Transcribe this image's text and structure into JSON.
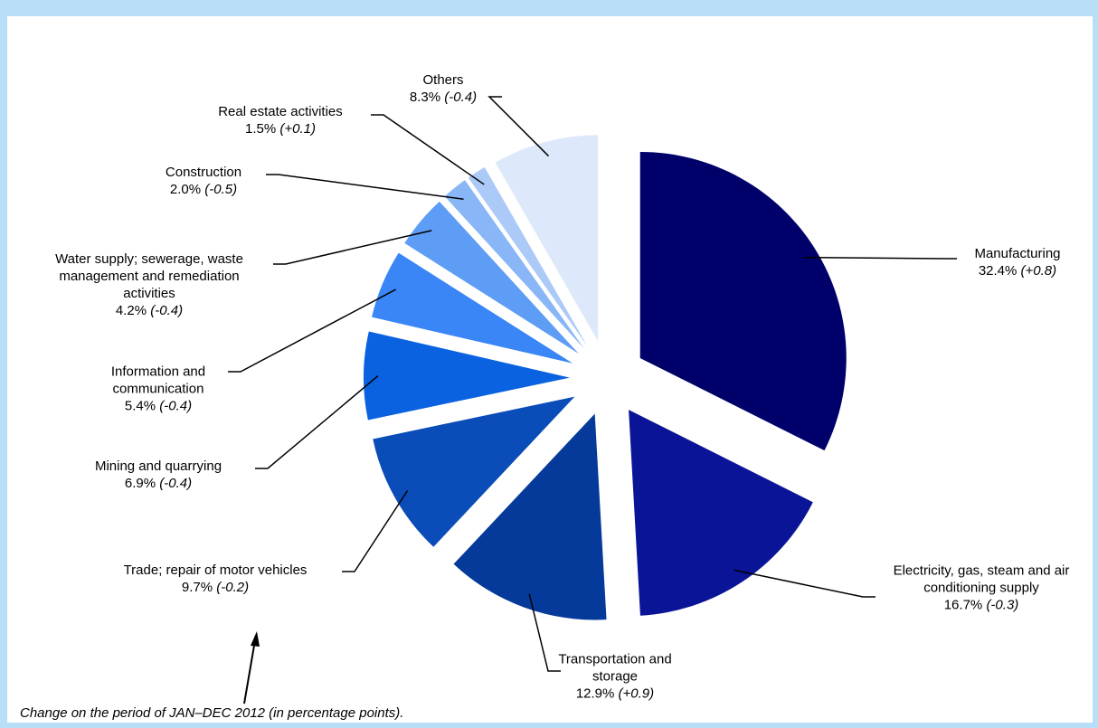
{
  "chart_data": {
    "type": "pie",
    "categories": [
      "Manufacturing",
      "Electricity, gas, steam and air conditioning supply",
      "Transportation and storage",
      "Trade; repair of motor vehicles",
      "Mining and quarrying",
      "Information and communication",
      "Water supply; sewerage, waste management and remediation activities",
      "Construction",
      "Real estate activities",
      "Others"
    ],
    "values": [
      32.4,
      16.7,
      12.9,
      9.7,
      6.9,
      5.4,
      4.2,
      2.0,
      1.5,
      8.3
    ],
    "value_labels": [
      "32.4%",
      "16.7%",
      "12.9%",
      "9.7%",
      "6.9%",
      "5.4%",
      "4.2%",
      "2.0%",
      "1.5%",
      "8.3%"
    ],
    "change_labels": [
      "(+0.8)",
      "(-0.3)",
      "(+0.9)",
      "(-0.2)",
      "(-0.4)",
      "(-0.4)",
      "(-0.4)",
      "(-0.5)",
      "(+0.1)",
      "(-0.4)"
    ],
    "colors": [
      "#00006b",
      "#0a1496",
      "#063a9a",
      "#0a4cb8",
      "#0a62e0",
      "#3a86f6",
      "#5e9df5",
      "#88b6f6",
      "#abcaf8",
      "#dde9fb"
    ],
    "footnote": "Change on the period of JAN–DEC 2012 (in percentage points)."
  }
}
